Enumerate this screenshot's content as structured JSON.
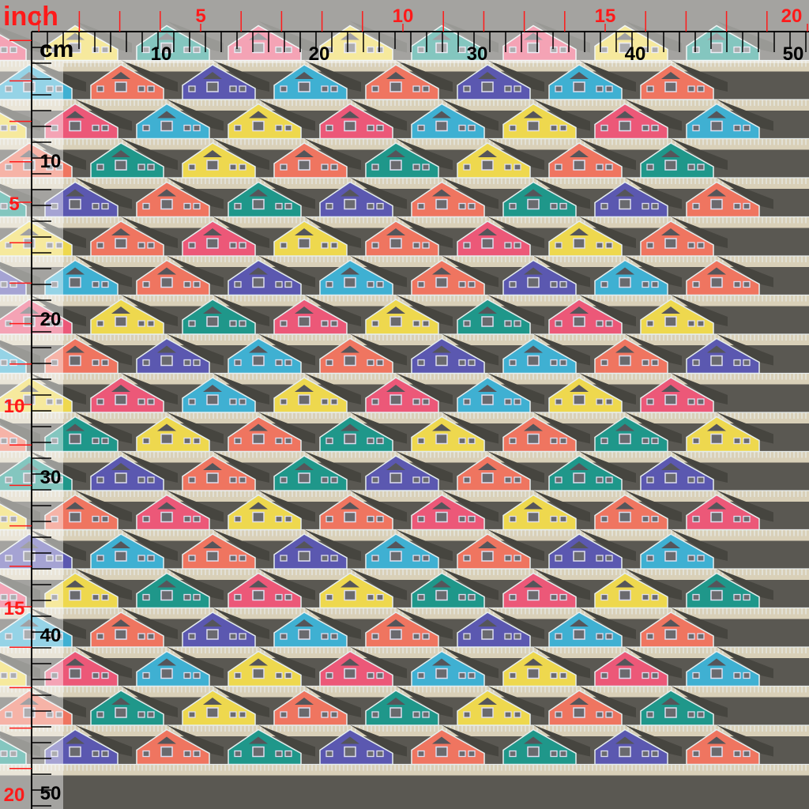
{
  "rulers": {
    "inch_unit": "inch",
    "cm_unit": "cm",
    "top_inch_labels": [
      "5",
      "10",
      "15",
      "20"
    ],
    "top_cm_labels": [
      "10",
      "20",
      "30",
      "40",
      "50"
    ],
    "left_cm_labels": [
      "10",
      "20",
      "30",
      "40",
      "50"
    ],
    "left_inch_labels": [
      "5",
      "10",
      "15",
      "20"
    ],
    "inch_color": "#ff1a1a",
    "cm_color": "#000000"
  },
  "fabric": {
    "motif": "house-icon",
    "palette": {
      "coral": "#ef7560",
      "purple": "#5b58b0",
      "blue": "#3fb0d2",
      "pink": "#ec5878",
      "yellow": "#eed84e",
      "teal": "#1f978a"
    },
    "row_colors": [
      [
        "coral",
        "purple",
        "blue"
      ],
      [
        "pink",
        "blue",
        "yellow"
      ],
      [
        "teal",
        "yellow",
        "coral"
      ],
      [
        "purple",
        "coral",
        "teal"
      ],
      [
        "coral",
        "pink",
        "yellow"
      ],
      [
        "blue",
        "coral",
        "purple"
      ],
      [
        "yellow",
        "teal",
        "pink"
      ],
      [
        "coral",
        "purple",
        "blue"
      ],
      [
        "pink",
        "blue",
        "yellow"
      ],
      [
        "teal",
        "yellow",
        "coral"
      ],
      [
        "purple",
        "coral",
        "teal"
      ],
      [
        "coral",
        "pink",
        "yellow"
      ],
      [
        "blue",
        "coral",
        "purple"
      ],
      [
        "yellow",
        "teal",
        "pink"
      ]
    ],
    "ground_color": "#5a5852",
    "path_color": "#d9d0b8",
    "railing_color": "#e8ecea"
  }
}
